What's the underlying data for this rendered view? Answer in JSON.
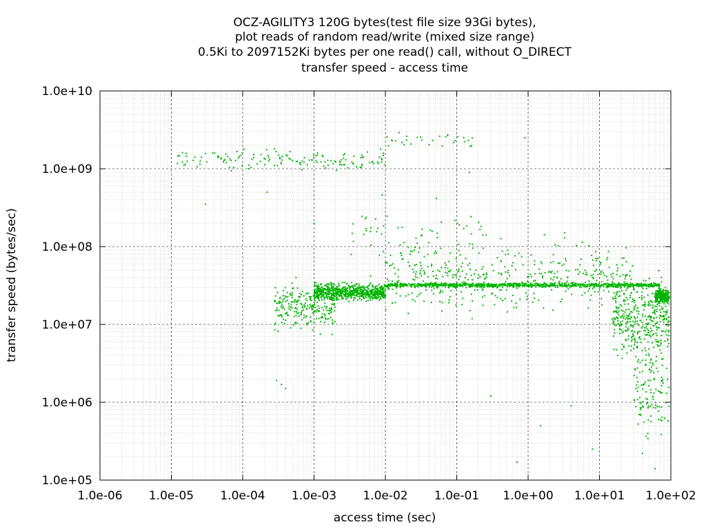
{
  "chart_data": {
    "type": "scatter",
    "title_lines": [
      "OCZ-AGILITY3 120G bytes(test file size 93Gi bytes),",
      "plot reads of random read/write (mixed size range)",
      "0.5Ki to 2097152Ki bytes per one read() call, without O_DIRECT",
      "transfer speed - access time"
    ],
    "xlabel": "access time (sec)",
    "ylabel": "transfer speed (bytes/sec)",
    "x_scale": "log",
    "y_scale": "log",
    "xlim": [
      1e-06,
      100
    ],
    "ylim": [
      100000,
      10000000000
    ],
    "x_ticks": [
      {
        "value": 1e-06,
        "label": "1.0e-06"
      },
      {
        "value": 1e-05,
        "label": "1.0e-05"
      },
      {
        "value": 0.0001,
        "label": "1.0e-04"
      },
      {
        "value": 0.001,
        "label": "1.0e-03"
      },
      {
        "value": 0.01,
        "label": "1.0e-02"
      },
      {
        "value": 0.1,
        "label": "1.0e-01"
      },
      {
        "value": 1,
        "label": "1.0e+00"
      },
      {
        "value": 10,
        "label": "1.0e+01"
      },
      {
        "value": 100,
        "label": "1.0e+02"
      }
    ],
    "y_ticks": [
      {
        "value": 100000,
        "label": "1.0e+05"
      },
      {
        "value": 1000000,
        "label": "1.0e+06"
      },
      {
        "value": 10000000,
        "label": "1.0e+07"
      },
      {
        "value": 100000000,
        "label": "1.0e+08"
      },
      {
        "value": 1000000000,
        "label": "1.0e+09"
      },
      {
        "value": 10000000000,
        "label": "1.0e+10"
      }
    ],
    "grid": true,
    "legend": "none",
    "point_color": "#00b400",
    "series": [
      {
        "clusters": [
          {
            "x_range": [
              1.2e-05,
              0.01
            ],
            "y_center": 1300000000,
            "y_spread_decades": 0.12,
            "count": 150
          },
          {
            "x_range": [
              0.01,
              0.2
            ],
            "y_center": 2400000000,
            "y_spread_decades": 0.08,
            "count": 30
          },
          {
            "x_range": [
              0.00028,
              0.002
            ],
            "y_center": 17000000,
            "y_spread_decades": 0.28,
            "count": 250
          },
          {
            "x_range": [
              0.001,
              0.01
            ],
            "y_center": 26000000,
            "y_spread_decades": 0.1,
            "count": 700
          },
          {
            "x_range": [
              0.01,
              70
            ],
            "y_center": 32000000,
            "y_spread_decades": 0.025,
            "count": 900
          },
          {
            "x_range": [
              0.01,
              30
            ],
            "y_center": 40000000,
            "y_spread_decades": 0.4,
            "count": 450
          },
          {
            "x_range": [
              15,
              95
            ],
            "y_center": 12000000,
            "y_spread_decades": 0.45,
            "count": 400
          },
          {
            "x_range": [
              60,
              95
            ],
            "y_center": 23000000,
            "y_spread_decades": 0.08,
            "count": 250
          },
          {
            "x_range": [
              30,
              95
            ],
            "y_center": 1500000,
            "y_spread_decades": 0.6,
            "count": 120
          },
          {
            "x_range": [
              0.003,
              0.3
            ],
            "y_center": 150000000,
            "y_spread_decades": 0.4,
            "count": 60
          }
        ],
        "sample_points": [
          [
            0.0003,
            1900000
          ],
          [
            0.00035,
            1700000
          ],
          [
            0.0004,
            1500000
          ],
          [
            0.001,
            200000000
          ],
          [
            0.15,
            900000000
          ],
          [
            0.3,
            1200000
          ],
          [
            0.7,
            170000
          ],
          [
            0.9,
            2500000000
          ],
          [
            1.5,
            500000
          ],
          [
            4,
            900000
          ],
          [
            8,
            250000
          ],
          [
            40,
            220000
          ],
          [
            60,
            140000
          ],
          [
            0.00012,
            1000000000
          ],
          [
            3e-05,
            350000000
          ],
          [
            0.00022,
            500000000
          ]
        ]
      }
    ]
  }
}
